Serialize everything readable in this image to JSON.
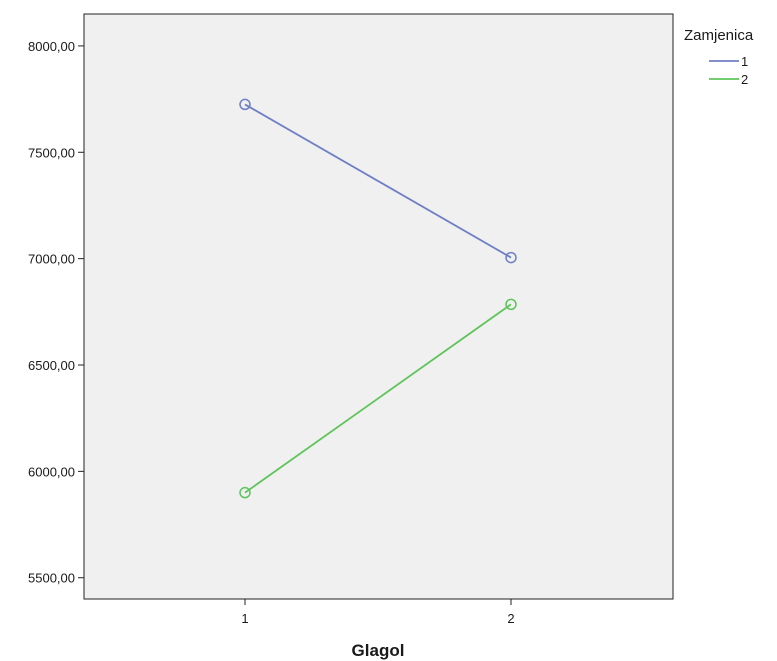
{
  "chart_data": {
    "type": "line",
    "title": "",
    "xlabel": "Glagol",
    "ylabel": "",
    "categories": [
      "1",
      "2"
    ],
    "ylim": [
      5400,
      8150
    ],
    "yticks": [
      5500,
      6000,
      6500,
      7000,
      7500,
      8000
    ],
    "ytick_labels": [
      "5500,00",
      "6000,00",
      "6500,00",
      "7000,00",
      "7500,00",
      "8000,00"
    ],
    "grid": false,
    "legend": {
      "title": "Zamjenica",
      "placement": "top-right outside"
    },
    "series": [
      {
        "name": "1",
        "color": "#6f7fc6",
        "values": [
          7725,
          7005
        ]
      },
      {
        "name": "2",
        "color": "#5fc45a",
        "values": [
          5900,
          6785
        ]
      }
    ],
    "plot_background": "#f0f0f0"
  }
}
